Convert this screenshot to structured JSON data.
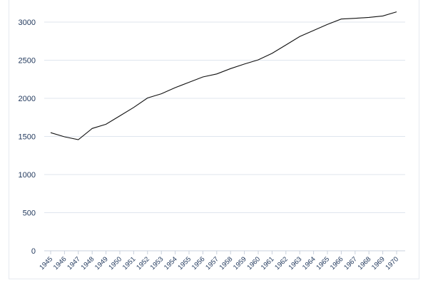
{
  "chart_data": {
    "type": "line",
    "title": "",
    "xlabel": "",
    "ylabel": "",
    "x": [
      "1945",
      "1946",
      "1947",
      "1948",
      "1949",
      "1950",
      "1951",
      "1952",
      "1953",
      "1954",
      "1955",
      "1956",
      "1957",
      "1958",
      "1959",
      "1960",
      "1961",
      "1962",
      "1963",
      "1964",
      "1965",
      "1966",
      "1967",
      "1968",
      "1969",
      "1970"
    ],
    "series": [
      {
        "values": [
          1550,
          1495,
          1458,
          1605,
          1660,
          1770,
          1880,
          2005,
          2060,
          2140,
          2210,
          2280,
          2320,
          2390,
          2450,
          2505,
          2590,
          2700,
          2810,
          2890,
          2970,
          3040,
          3050,
          3062,
          3080,
          3135
        ],
        "color": "#111111"
      }
    ],
    "ylim": [
      0,
      3250
    ],
    "yticks": [
      0,
      500,
      1000,
      1500,
      2000,
      2500,
      3000
    ],
    "grid": true,
    "legend": "none"
  }
}
